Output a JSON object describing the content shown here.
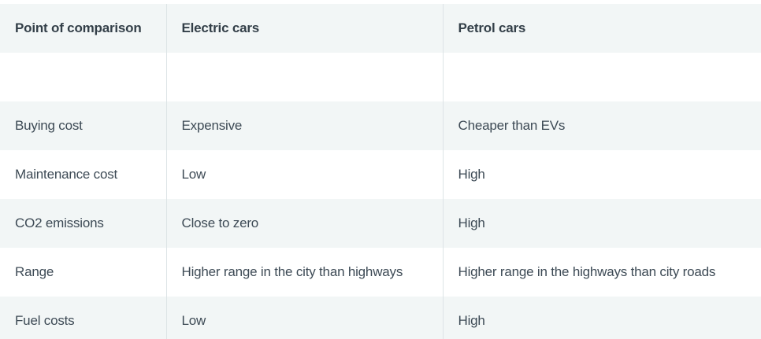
{
  "table": {
    "headers": [
      "Point of comparison",
      "Electric cars",
      "Petrol cars"
    ],
    "rows": [
      [
        "",
        "",
        ""
      ],
      [
        "Buying cost",
        "Expensive",
        "Cheaper than EVs"
      ],
      [
        "Maintenance cost",
        "Low",
        "High"
      ],
      [
        "CO2 emissions",
        "Close to zero",
        "High"
      ],
      [
        "Range",
        "Higher range in the city than highways",
        "Higher range in the highways than city roads"
      ],
      [
        "Fuel costs",
        "Low",
        "High"
      ]
    ]
  },
  "colors": {
    "shaded_row": "#f2f6f6",
    "plain_row": "#ffffff",
    "divider": "#dde4e6",
    "text": "#3d4a55"
  }
}
